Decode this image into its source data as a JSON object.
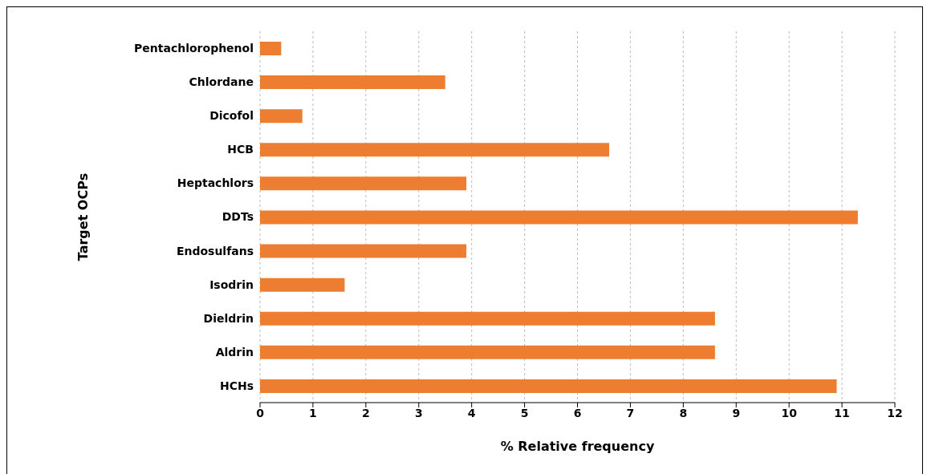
{
  "chart_data": {
    "type": "bar",
    "orientation": "horizontal",
    "xlabel": "% Relative frequency",
    "ylabel": "Target OCPs",
    "categories": [
      "Pentachlorophenol",
      "Chlordane",
      "Dicofol",
      "HCB",
      "Heptachlors",
      "DDTs",
      "Endosulfans",
      "Isodrin",
      "Dieldrin",
      "Aldrin",
      "HCHs"
    ],
    "values": [
      0.4,
      3.5,
      0.8,
      6.6,
      3.9,
      11.3,
      3.9,
      1.6,
      8.6,
      8.6,
      10.9
    ],
    "color": "#ed7d31",
    "xlim": [
      0,
      12
    ],
    "xticks": [
      0,
      1,
      2,
      3,
      4,
      5,
      6,
      7,
      8,
      9,
      10,
      11,
      12
    ],
    "grid": "x"
  }
}
